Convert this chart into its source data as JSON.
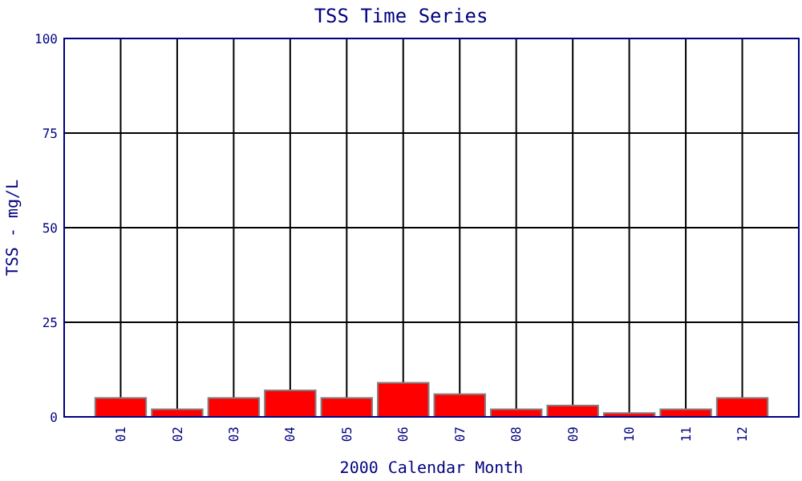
{
  "chart_data": {
    "type": "bar",
    "title": "TSS Time Series",
    "xlabel": "2000 Calendar Month",
    "ylabel": "TSS - mg/L",
    "categories": [
      "01",
      "02",
      "03",
      "04",
      "05",
      "06",
      "07",
      "08",
      "09",
      "10",
      "11",
      "12"
    ],
    "values": [
      5,
      2,
      5,
      7,
      5,
      9,
      6,
      2,
      3,
      1,
      2,
      5
    ],
    "color": "#ff0000",
    "ylim": [
      0,
      100
    ],
    "yticks": [
      0,
      25,
      50,
      75,
      100
    ],
    "grid": true
  }
}
